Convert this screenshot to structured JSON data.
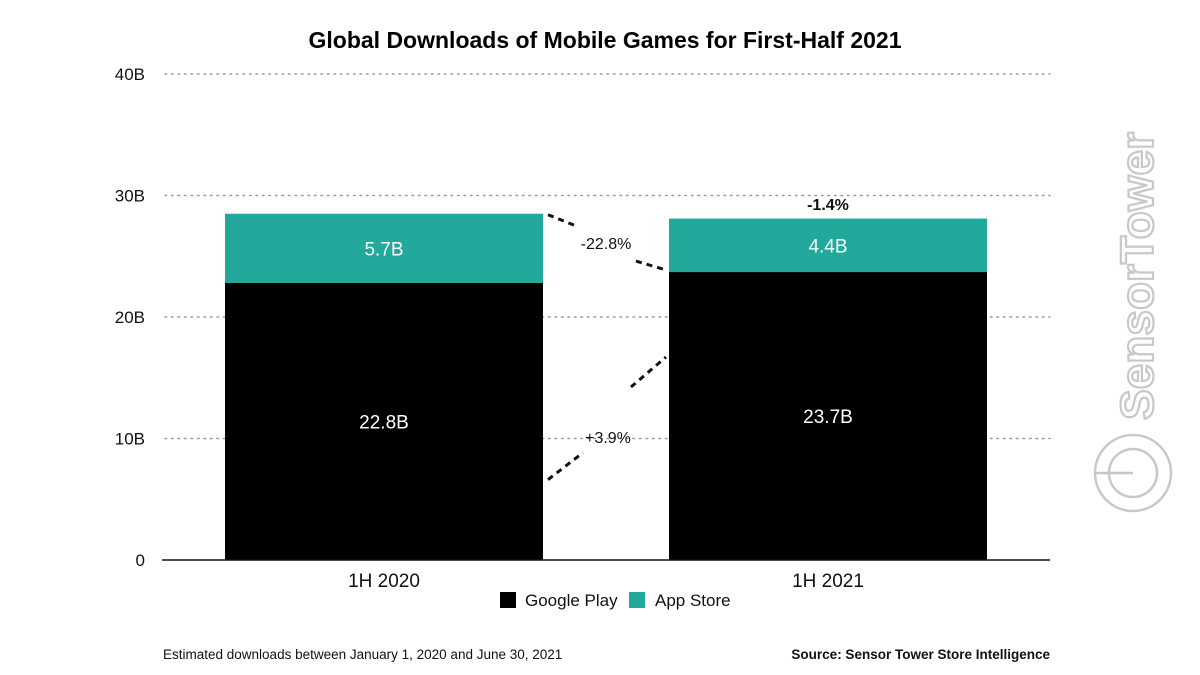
{
  "chart_data": {
    "type": "bar",
    "stacked": true,
    "title": "Global Downloads of Mobile Games for First-Half 2021",
    "categories": [
      "1H 2020",
      "1H 2021"
    ],
    "series": [
      {
        "name": "Google Play",
        "values": [
          22.8,
          23.7
        ],
        "labels": [
          "22.8B",
          "23.7B"
        ],
        "color": "#000000"
      },
      {
        "name": "App Store",
        "values": [
          5.7,
          4.4
        ],
        "labels": [
          "5.7B",
          "4.4B"
        ],
        "color": "#22a99b"
      }
    ],
    "ylim": [
      0,
      40
    ],
    "yticks": [
      0,
      10,
      20,
      30,
      40
    ],
    "ytick_labels": [
      "0",
      "10B",
      "20B",
      "30B",
      "40B"
    ],
    "grid": true,
    "legend": "bottom-center",
    "annotations": {
      "app_store_change": "-22.8%",
      "google_play_change": "+3.9%",
      "total_change": "-1.4%"
    },
    "footnote": "Estimated downloads between January 1, 2020 and June 30, 2021",
    "source": "Source: Sensor Tower Store Intelligence",
    "watermark": "SensorTower"
  }
}
